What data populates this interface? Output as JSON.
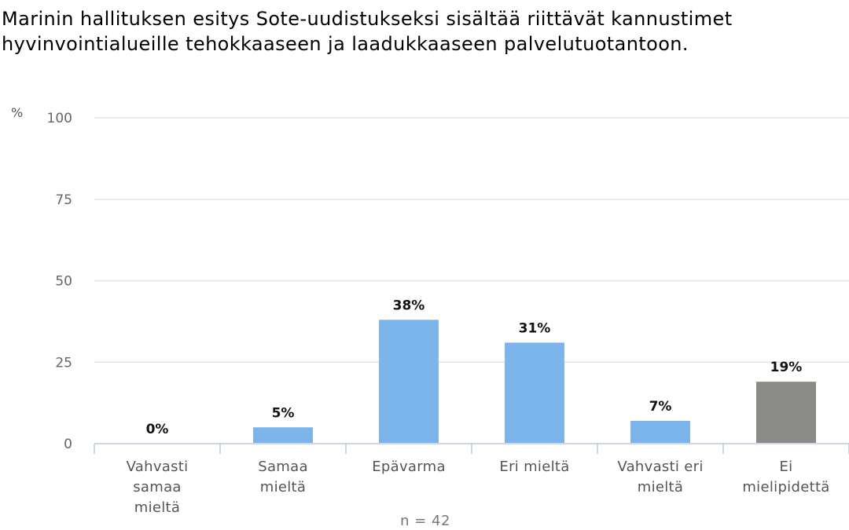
{
  "chart_data": {
    "type": "bar",
    "title": "Marinin hallituksen esitys Sote-uudistukseksi sisältää riittävät kannustimet hyvinvointialueille tehokkaaseen ja laadukkaaseen palvelutuotantoon.",
    "y_unit": "%",
    "ylim": [
      0,
      100
    ],
    "yticks": [
      0,
      25,
      50,
      75,
      100
    ],
    "grid": true,
    "categories": [
      [
        "Vahvasti",
        "samaa",
        "mieltä"
      ],
      [
        "Samaa",
        "mieltä"
      ],
      [
        "Epävarma"
      ],
      [
        "Eri mieltä"
      ],
      [
        "Vahvasti eri",
        "mieltä"
      ],
      [
        "Ei",
        "mielipidettä"
      ]
    ],
    "values": [
      0,
      5,
      38,
      31,
      7,
      19
    ],
    "data_labels": [
      "0%",
      "5%",
      "38%",
      "31%",
      "7%",
      "19%"
    ],
    "bar_colors": [
      "#7cb5ec",
      "#7cb5ec",
      "#7cb5ec",
      "#7cb5ec",
      "#7cb5ec",
      "#8a8a87"
    ],
    "footnote": "n = 42"
  },
  "colors": {
    "gridline": "#e6e6e6",
    "axis": "#ccd6eb"
  }
}
